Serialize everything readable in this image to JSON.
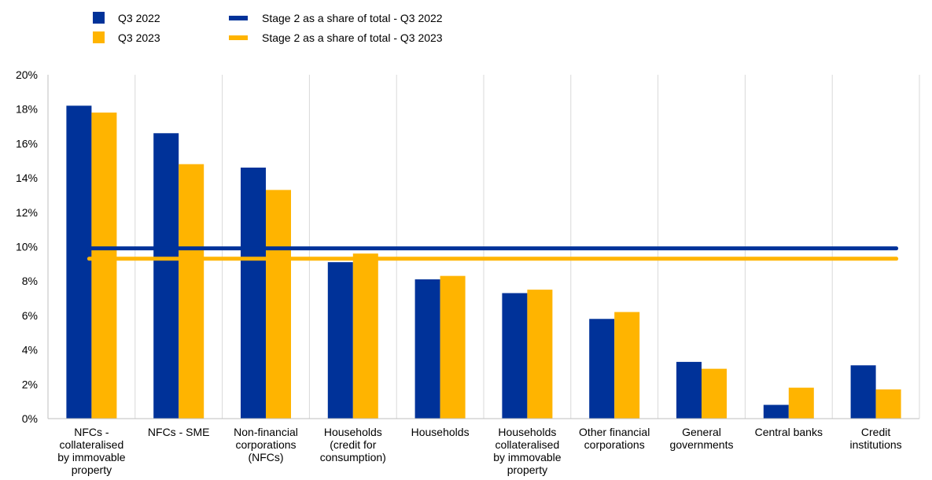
{
  "chart_data": {
    "type": "bar",
    "categories": [
      "NFCs - collateralised by immovable property",
      "NFCs - SME",
      "Non-financial corporations (NFCs)",
      "Households (credit for consumption)",
      "Households",
      "Households collateralised by immovable property",
      "Other financial corporations",
      "General governments",
      "Central banks",
      "Credit institutions"
    ],
    "category_label_lines": [
      [
        "NFCs -",
        "collateralised",
        "by immovable",
        "property"
      ],
      [
        "NFCs - SME"
      ],
      [
        "Non-financial",
        "corporations",
        "(NFCs)"
      ],
      [
        "Households",
        "(credit for",
        "consumption)"
      ],
      [
        "Households"
      ],
      [
        "Households",
        "collateralised",
        "by immovable",
        "property"
      ],
      [
        "Other financial",
        "corporations"
      ],
      [
        "General",
        "governments"
      ],
      [
        "Central banks"
      ],
      [
        "Credit",
        "institutions"
      ]
    ],
    "series": [
      {
        "name": "Q3 2022",
        "color": "#003299",
        "values": [
          18.2,
          16.6,
          14.6,
          9.1,
          8.1,
          7.3,
          5.8,
          3.3,
          0.8,
          3.1
        ]
      },
      {
        "name": "Q3 2023",
        "color": "#FFB400",
        "values": [
          17.8,
          14.8,
          13.3,
          9.6,
          8.3,
          7.5,
          6.2,
          2.9,
          1.8,
          1.7
        ]
      }
    ],
    "reference_lines": [
      {
        "name": "Stage 2 as a share of total - Q3 2022",
        "color": "#003299",
        "value": 9.9
      },
      {
        "name": "Stage 2 as a share of total - Q3 2023",
        "color": "#FFB400",
        "value": 9.3
      }
    ],
    "y_ticks": [
      "0%",
      "2%",
      "4%",
      "6%",
      "8%",
      "10%",
      "12%",
      "14%",
      "16%",
      "18%",
      "20%"
    ],
    "ylim": [
      0,
      20
    ],
    "y_unit": "%",
    "title": "",
    "xlabel": "",
    "ylabel": "",
    "grid": "vertical",
    "legend_position": "top-left"
  }
}
